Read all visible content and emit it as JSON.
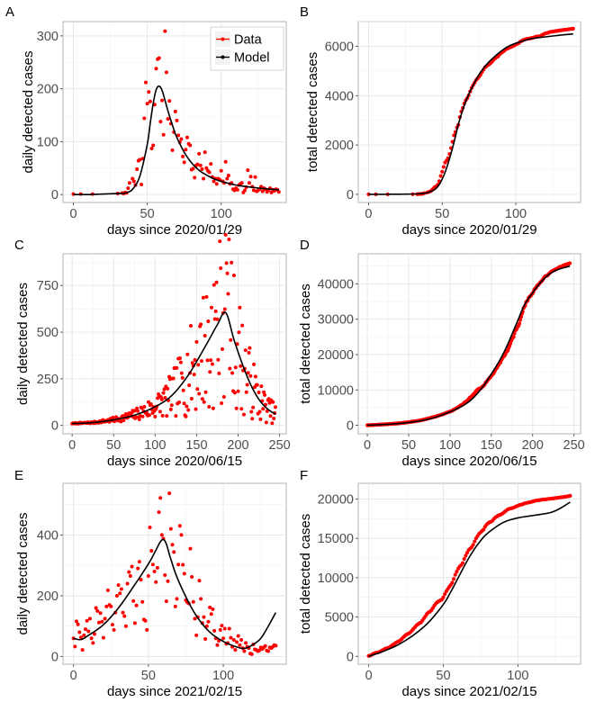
{
  "figure": {
    "legend": {
      "data_label": "Data",
      "model_label": "Model"
    },
    "colors": {
      "data": "#ff0000",
      "model": "#000000"
    }
  },
  "chart_data": [
    {
      "id": "A",
      "tag": "A",
      "type": "scatter",
      "title": "",
      "xlabel": "days since 2020/01/29",
      "ylabel": "daily detected cases",
      "xlim": [
        -7,
        144
      ],
      "ylim": [
        -15,
        327
      ],
      "xticks": [
        0,
        50,
        100
      ],
      "yticks": [
        0,
        100,
        200,
        300
      ],
      "grid": true,
      "legend": "top-right",
      "data_x": [
        0,
        5,
        13,
        30,
        33,
        34,
        35,
        36,
        37,
        38,
        40,
        41,
        42,
        43,
        44,
        45,
        46,
        47,
        48,
        49,
        50,
        51,
        52,
        53,
        54,
        55,
        56,
        57,
        58,
        59,
        60,
        61,
        62,
        63,
        64,
        65,
        66,
        67,
        68,
        69,
        70,
        71,
        72,
        73,
        74,
        75,
        76,
        77,
        78,
        79,
        80,
        81,
        82,
        83,
        84,
        85,
        86,
        87,
        88,
        89,
        90,
        91,
        92,
        93,
        94,
        95,
        96,
        97,
        98,
        99,
        100,
        101,
        102,
        103,
        104,
        105,
        106,
        107,
        108,
        109,
        110,
        111,
        112,
        113,
        114,
        115,
        116,
        117,
        118,
        119,
        120,
        121,
        122,
        123,
        124,
        125,
        126,
        127,
        128,
        129,
        130,
        131,
        132,
        133,
        134,
        135,
        136,
        137,
        138,
        139
      ],
      "data_y": [
        1,
        1,
        1,
        2,
        3,
        2,
        4,
        3,
        12,
        22,
        30,
        25,
        18,
        48,
        64,
        66,
        19,
        68,
        144,
        212,
        172,
        194,
        176,
        87,
        93,
        170,
        238,
        256,
        258,
        138,
        178,
        113,
        309,
        231,
        143,
        177,
        134,
        84,
        118,
        157,
        140,
        112,
        99,
        105,
        72,
        61,
        85,
        108,
        96,
        93,
        47,
        49,
        32,
        55,
        57,
        77,
        55,
        48,
        30,
        80,
        50,
        45,
        42,
        58,
        33,
        25,
        30,
        20,
        30,
        28,
        45,
        25,
        22,
        62,
        30,
        36,
        20,
        22,
        10,
        8,
        12,
        9,
        18,
        20,
        22,
        4,
        8,
        14,
        46,
        22,
        34,
        15,
        8,
        33,
        6,
        8,
        10,
        15,
        6,
        12,
        10,
        5,
        8,
        12,
        4,
        9,
        7,
        10,
        9,
        5
      ],
      "model_x": [
        0,
        10,
        20,
        30,
        35,
        40,
        45,
        50,
        52,
        54,
        56,
        58,
        60,
        62,
        64,
        66,
        68,
        70,
        75,
        80,
        85,
        90,
        95,
        100,
        110,
        120,
        130,
        139
      ],
      "model_y": [
        0,
        0,
        1,
        2,
        3,
        10,
        35,
        95,
        135,
        172,
        198,
        205,
        197,
        178,
        158,
        140,
        123,
        108,
        80,
        60,
        46,
        37,
        30,
        25,
        18,
        14,
        11,
        9
      ]
    },
    {
      "id": "B",
      "tag": "B",
      "type": "scatter",
      "title": "",
      "xlabel": "days since 2020/01/29",
      "ylabel": "total detected cases",
      "xlim": [
        -7,
        144
      ],
      "ylim": [
        -330,
        7000
      ],
      "xticks": [
        0,
        50,
        100
      ],
      "yticks": [
        0,
        2000,
        4000,
        6000
      ],
      "grid": true,
      "legend": "none",
      "cumulative_of": "A",
      "model_x": [
        0,
        20,
        30,
        35,
        40,
        45,
        48,
        50,
        52,
        55,
        58,
        60,
        62,
        65,
        68,
        70,
        75,
        80,
        85,
        90,
        95,
        100,
        110,
        120,
        130,
        139
      ],
      "model_y": [
        0,
        5,
        15,
        30,
        70,
        200,
        400,
        620,
        900,
        1450,
        2100,
        2600,
        3050,
        3600,
        4050,
        4300,
        4850,
        5250,
        5550,
        5800,
        6000,
        6120,
        6300,
        6380,
        6450,
        6500
      ]
    },
    {
      "id": "C",
      "tag": "C",
      "type": "scatter",
      "title": "",
      "xlabel": "days since 2020/06/15",
      "ylabel": "daily detected cases",
      "xlim": [
        -11,
        258
      ],
      "ylim": [
        -45,
        920
      ],
      "xticks": [
        0,
        50,
        100,
        150,
        200,
        250
      ],
      "yticks": [
        0,
        250,
        500,
        750
      ],
      "grid": true,
      "legend": "none",
      "data_seed": 7,
      "model_x": [
        0,
        25,
        50,
        75,
        100,
        120,
        140,
        160,
        175,
        185,
        195,
        205,
        215,
        225,
        235,
        245
      ],
      "model_y": [
        10,
        15,
        30,
        55,
        100,
        160,
        270,
        420,
        540,
        605,
        460,
        330,
        220,
        140,
        90,
        60
      ]
    },
    {
      "id": "D",
      "tag": "D",
      "type": "scatter",
      "title": "",
      "xlabel": "days since 2020/06/15",
      "ylabel": "total detected cases",
      "xlim": [
        -11,
        258
      ],
      "ylim": [
        -2400,
        48500
      ],
      "xticks": [
        0,
        50,
        100,
        150,
        200,
        250
      ],
      "yticks": [
        0,
        10000,
        20000,
        30000,
        40000
      ],
      "grid": true,
      "legend": "none",
      "cumulative_of": "C",
      "model_x": [
        0,
        25,
        50,
        75,
        100,
        120,
        135,
        150,
        165,
        180,
        190,
        200,
        210,
        220,
        230,
        245
      ],
      "model_y": [
        0,
        300,
        800,
        1800,
        3800,
        6200,
        9500,
        14500,
        20500,
        28500,
        34000,
        37500,
        40500,
        42700,
        44000,
        45000
      ]
    },
    {
      "id": "E",
      "tag": "E",
      "type": "scatter",
      "title": "",
      "xlabel": "days since 2021/02/15",
      "ylabel": "daily detected cases",
      "xlim": [
        -7,
        142
      ],
      "ylim": [
        -25,
        570
      ],
      "xticks": [
        0,
        50,
        100
      ],
      "yticks": [
        0,
        200,
        400
      ],
      "grid": true,
      "legend": "none",
      "data_x": [
        0,
        1,
        2,
        3,
        4,
        5,
        6,
        7,
        8,
        9,
        10,
        11,
        12,
        13,
        14,
        15,
        16,
        17,
        18,
        19,
        20,
        21,
        22,
        23,
        24,
        25,
        26,
        27,
        28,
        29,
        30,
        31,
        32,
        33,
        34,
        35,
        36,
        37,
        38,
        39,
        40,
        41,
        42,
        43,
        44,
        45,
        46,
        47,
        48,
        49,
        50,
        51,
        52,
        53,
        54,
        55,
        56,
        57,
        58,
        59,
        60,
        61,
        62,
        63,
        64,
        65,
        66,
        67,
        68,
        69,
        70,
        71,
        72,
        73,
        74,
        75,
        76,
        77,
        78,
        79,
        80,
        81,
        82,
        83,
        84,
        85,
        86,
        87,
        88,
        89,
        90,
        91,
        92,
        93,
        94,
        95,
        96,
        97,
        98,
        99,
        100,
        101,
        102,
        103,
        104,
        105,
        106,
        107,
        108,
        109,
        110,
        111,
        112,
        113,
        114,
        115,
        116,
        117,
        118,
        119,
        120,
        121,
        122,
        123,
        124,
        125,
        126,
        127,
        128,
        129,
        130,
        131,
        132,
        133,
        134,
        135
      ],
      "data_y": [
        60,
        33,
        116,
        106,
        80,
        63,
        22,
        70,
        90,
        118,
        83,
        125,
        60,
        45,
        74,
        160,
        150,
        112,
        143,
        115,
        62,
        125,
        165,
        218,
        170,
        165,
        105,
        88,
        145,
        200,
        235,
        208,
        222,
        145,
        133,
        100,
        240,
        278,
        265,
        296,
        183,
        110,
        168,
        290,
        312,
        253,
        180,
        122,
        118,
        88,
        265,
        425,
        348,
        303,
        280,
        245,
        292,
        475,
        522,
        400,
        388,
        268,
        182,
        248,
        537,
        420,
        368,
        344,
        165,
        190,
        303,
        430,
        400,
        302,
        273,
        185,
        178,
        175,
        355,
        262,
        180,
        125,
        70,
        130,
        250,
        190,
        110,
        130,
        58,
        100,
        115,
        162,
        140,
        156,
        85,
        60,
        38,
        52,
        88,
        102,
        60,
        92,
        42,
        45,
        92,
        62,
        32,
        55,
        22,
        48,
        68,
        38,
        55,
        28,
        18,
        45,
        32,
        28,
        10,
        8,
        40,
        24,
        22,
        18,
        20,
        30,
        25,
        30,
        35,
        20,
        18,
        30,
        28,
        32,
        38,
        36
      ],
      "model_x": [
        0,
        5,
        10,
        20,
        30,
        40,
        50,
        55,
        58,
        60,
        62,
        65,
        70,
        80,
        90,
        100,
        110,
        115,
        120,
        125,
        130,
        135
      ],
      "model_y": [
        60,
        56,
        70,
        105,
        160,
        230,
        305,
        350,
        378,
        385,
        370,
        320,
        250,
        150,
        85,
        50,
        30,
        28,
        40,
        60,
        100,
        145
      ]
    },
    {
      "id": "F",
      "tag": "F",
      "type": "scatter",
      "title": "",
      "xlabel": "days since 2021/02/15",
      "ylabel": "total detected cases",
      "xlim": [
        -7,
        142
      ],
      "ylim": [
        -1000,
        22000
      ],
      "xticks": [
        0,
        50,
        100
      ],
      "yticks": [
        0,
        5000,
        10000,
        15000,
        20000
      ],
      "grid": true,
      "legend": "none",
      "cumulative_of": "E",
      "model_x": [
        0,
        10,
        20,
        30,
        40,
        50,
        55,
        60,
        65,
        70,
        75,
        80,
        90,
        100,
        110,
        120,
        125,
        130,
        135
      ],
      "model_y": [
        0,
        650,
        1500,
        2700,
        4300,
        6600,
        8200,
        10000,
        11800,
        13400,
        14700,
        15700,
        17000,
        17600,
        17900,
        18200,
        18500,
        19000,
        19600
      ]
    }
  ]
}
